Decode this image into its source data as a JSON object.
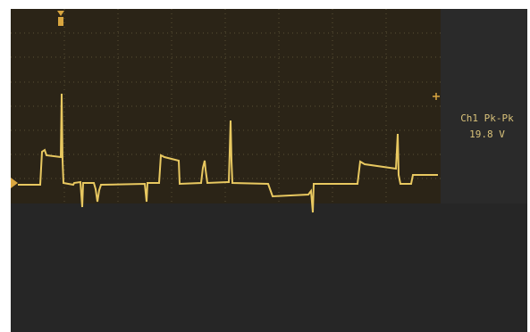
{
  "measurement": {
    "label": "Ch1 Pk-Pk",
    "value": "19.8 V"
  }
}
